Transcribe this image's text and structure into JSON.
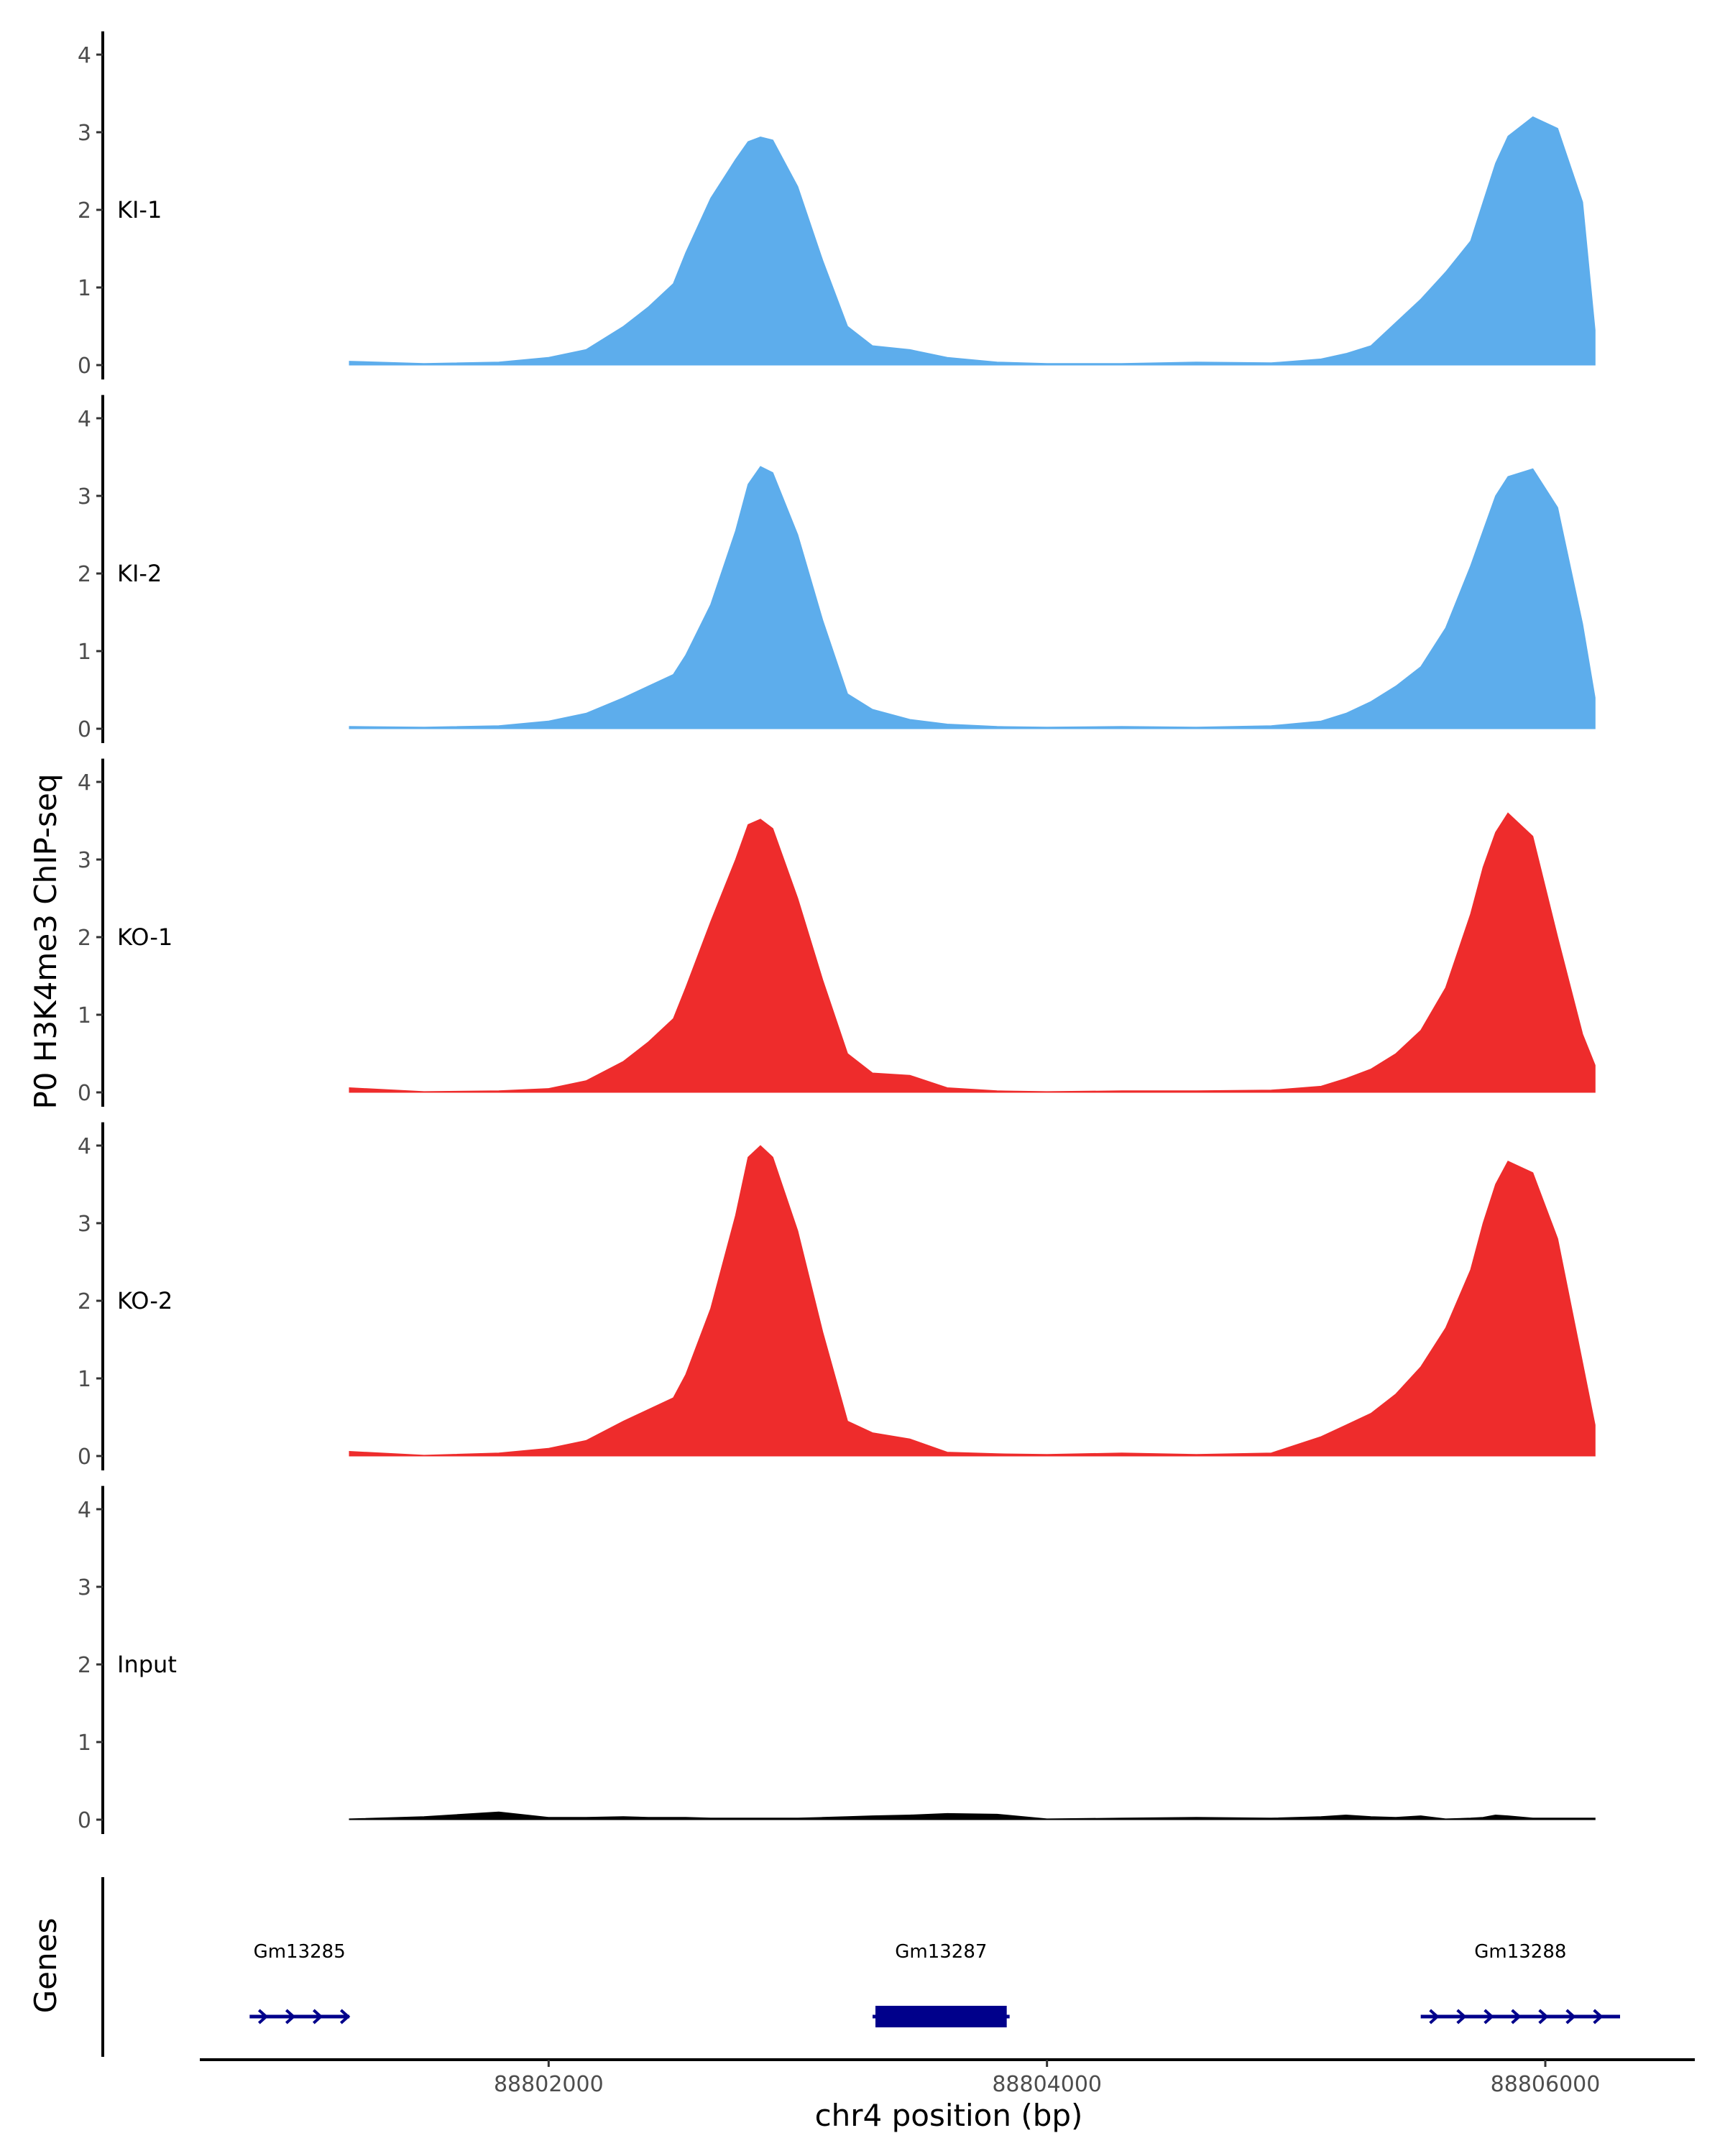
{
  "chart_data": {
    "type": "area",
    "ylabel": "P0 H3K4me3 ChIP-seq",
    "xlabel": "chr4 position (bp)",
    "xlim": [
      88800600,
      88806600
    ],
    "x_ticks": [
      88802000,
      88804000,
      88806000
    ],
    "x_tick_labels": [
      "88802000",
      "88804000",
      "88806000"
    ],
    "ylim": [
      0,
      4.3
    ],
    "y_ticks": [
      0,
      1,
      2,
      3,
      4
    ],
    "y_tick_labels": [
      "0",
      "1",
      "2",
      "3",
      "4"
    ],
    "grid": false,
    "x": [
      88801200,
      88801500,
      88801800,
      88802000,
      88802150,
      88802300,
      88802400,
      88802500,
      88802550,
      88802650,
      88802750,
      88802800,
      88802850,
      88802900,
      88803000,
      88803100,
      88803200,
      88803300,
      88803450,
      88803600,
      88803800,
      88804000,
      88804300,
      88804600,
      88804900,
      88805100,
      88805200,
      88805300,
      88805400,
      88805500,
      88805600,
      88805700,
      88805750,
      88805800,
      88805850,
      88805950,
      88806050,
      88806150,
      88806200
    ],
    "series": [
      {
        "name": "KI-1",
        "color": "#5DADEC",
        "values": [
          0.05,
          0.02,
          0.04,
          0.1,
          0.2,
          0.5,
          0.75,
          1.05,
          1.45,
          2.15,
          2.65,
          2.88,
          2.94,
          2.9,
          2.3,
          1.35,
          0.5,
          0.25,
          0.2,
          0.1,
          0.04,
          0.02,
          0.02,
          0.04,
          0.03,
          0.08,
          0.15,
          0.25,
          0.55,
          0.85,
          1.2,
          1.6,
          2.1,
          2.6,
          2.95,
          3.2,
          3.05,
          2.1,
          0.45
        ]
      },
      {
        "name": "KI-2",
        "color": "#5DADEC",
        "values": [
          0.03,
          0.02,
          0.04,
          0.1,
          0.2,
          0.4,
          0.55,
          0.7,
          0.95,
          1.6,
          2.55,
          3.15,
          3.38,
          3.3,
          2.5,
          1.4,
          0.45,
          0.25,
          0.12,
          0.06,
          0.03,
          0.02,
          0.03,
          0.02,
          0.04,
          0.1,
          0.2,
          0.35,
          0.55,
          0.8,
          1.3,
          2.1,
          2.55,
          3.0,
          3.25,
          3.35,
          2.85,
          1.35,
          0.4
        ]
      },
      {
        "name": "KO-1",
        "color": "#EE2C2C",
        "values": [
          0.06,
          0.01,
          0.02,
          0.05,
          0.15,
          0.4,
          0.65,
          0.95,
          1.35,
          2.2,
          3.0,
          3.45,
          3.52,
          3.4,
          2.5,
          1.45,
          0.5,
          0.25,
          0.22,
          0.06,
          0.02,
          0.01,
          0.02,
          0.02,
          0.03,
          0.08,
          0.18,
          0.3,
          0.5,
          0.8,
          1.35,
          2.3,
          2.9,
          3.35,
          3.6,
          3.3,
          2.0,
          0.75,
          0.35
        ]
      },
      {
        "name": "KO-2",
        "color": "#EE2C2C",
        "values": [
          0.06,
          0.01,
          0.04,
          0.1,
          0.2,
          0.45,
          0.6,
          0.75,
          1.05,
          1.9,
          3.1,
          3.85,
          4.0,
          3.85,
          2.9,
          1.6,
          0.45,
          0.3,
          0.22,
          0.05,
          0.03,
          0.02,
          0.04,
          0.02,
          0.04,
          0.25,
          0.4,
          0.55,
          0.8,
          1.15,
          1.65,
          2.4,
          3.0,
          3.5,
          3.8,
          3.65,
          2.8,
          1.2,
          0.4
        ]
      },
      {
        "name": "Input",
        "color": "#000000",
        "values": [
          0.01,
          0.04,
          0.1,
          0.03,
          0.03,
          0.04,
          0.03,
          0.03,
          0.03,
          0.02,
          0.02,
          0.02,
          0.02,
          0.02,
          0.02,
          0.03,
          0.04,
          0.05,
          0.06,
          0.08,
          0.07,
          0.01,
          0.02,
          0.03,
          0.02,
          0.04,
          0.06,
          0.04,
          0.03,
          0.05,
          0.01,
          0.02,
          0.03,
          0.06,
          0.05,
          0.02,
          0.02,
          0.02,
          0.02
        ]
      }
    ],
    "genes_track": {
      "title": "Genes",
      "color": "#00008B",
      "genes": [
        {
          "name": "Gm13285",
          "start": 88800800,
          "end": 88801200,
          "strand": "+"
        },
        {
          "name": "Gm13287",
          "start": 88803300,
          "end": 88803850,
          "strand": "+"
        },
        {
          "name": "Gm13288",
          "start": 88805500,
          "end": 88806300,
          "strand": "+"
        }
      ]
    }
  }
}
